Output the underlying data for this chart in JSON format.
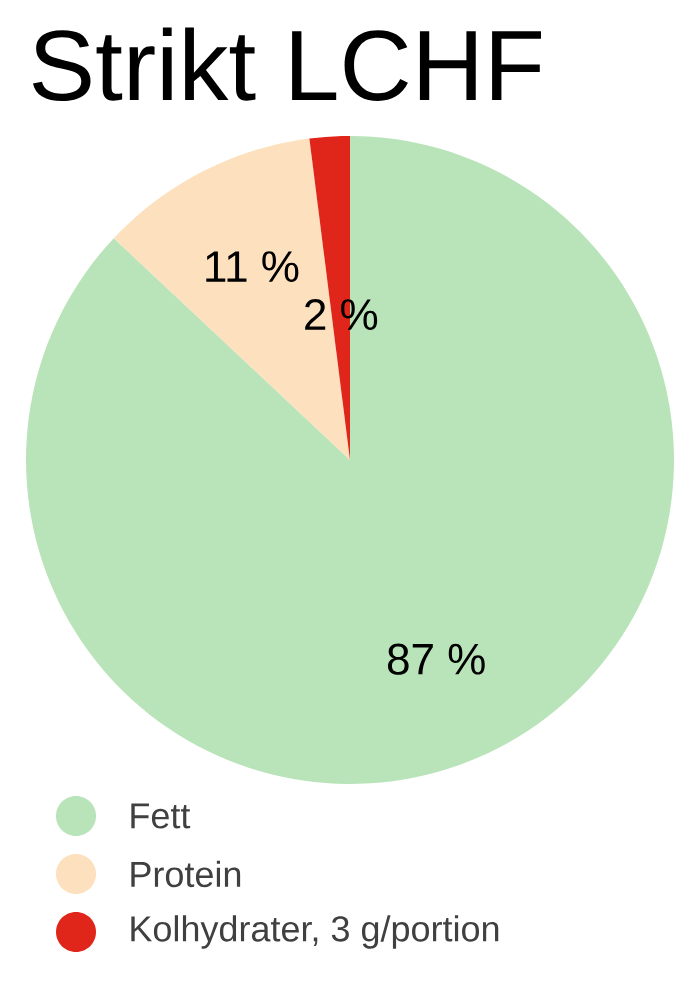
{
  "chart_data": {
    "type": "pie",
    "title": "Strikt LCHF",
    "categories": [
      "Fett",
      "Protein",
      "Kolhydrater, 3 g/portion"
    ],
    "values": [
      87,
      11,
      2
    ],
    "colors": [
      "#b9e3b8",
      "#fde0bd",
      "#e0261b"
    ],
    "value_labels": [
      "87 %",
      "11 %",
      "2 %"
    ],
    "legend": "bottom left"
  }
}
